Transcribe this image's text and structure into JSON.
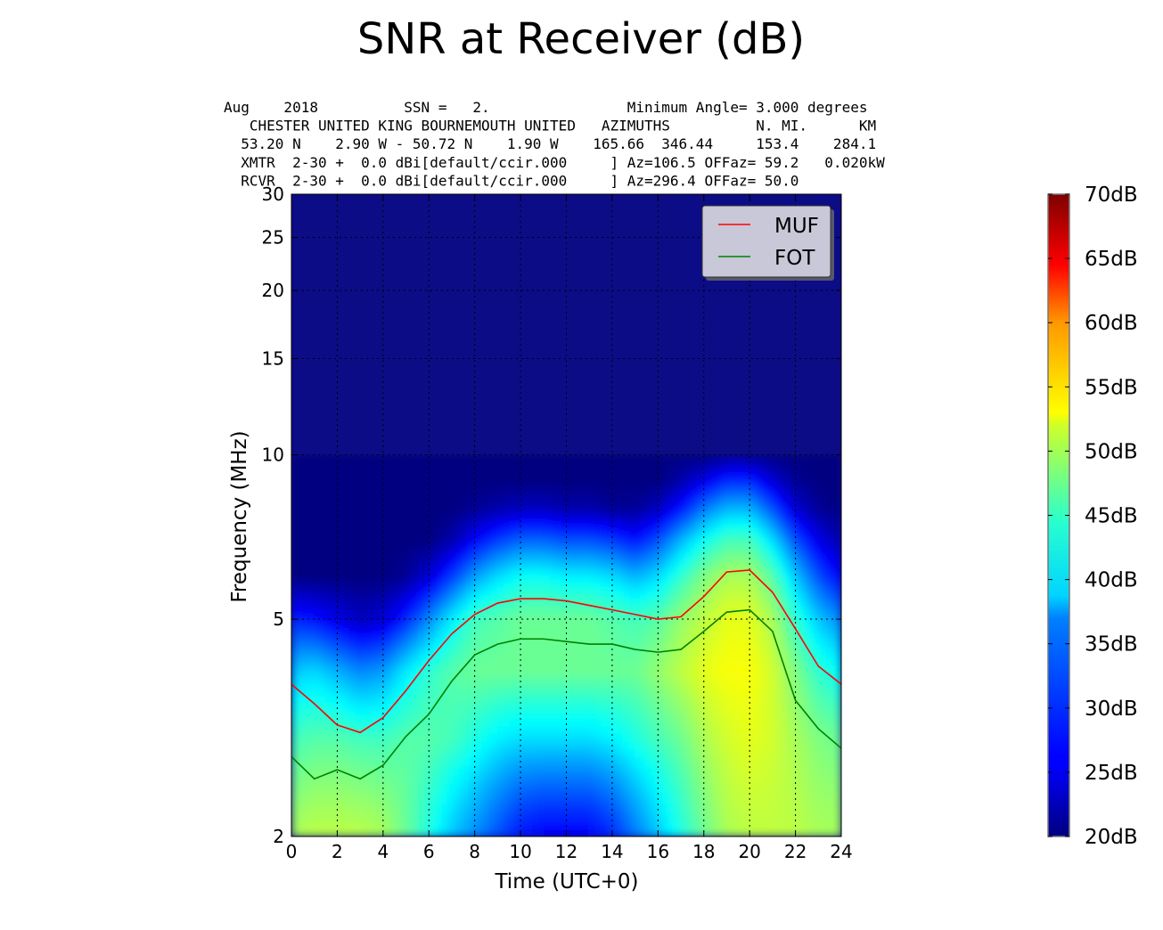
{
  "chart_data": {
    "type": "heatmap",
    "title": "SNR at Receiver (dB)",
    "header_lines": [
      "Aug    2018          SSN =   2.                Minimum Angle= 3.000 degrees",
      "   CHESTER UNITED KING BOURNEMOUTH UNITED   AZIMUTHS          N. MI.      KM",
      "  53.20 N    2.90 W - 50.72 N    1.90 W    165.66  346.44     153.4    284.1",
      "  XMTR  2-30 +  0.0 dBi[default/ccir.000     ] Az=106.5 OFFaz= 59.2   0.020kW",
      "  RCVR  2-30 +  0.0 dBi[default/ccir.000     ] Az=296.4 OFFaz= 50.0"
    ],
    "xlabel": "Time (UTC+0)",
    "ylabel": "Frequency (MHz)",
    "xlim": [
      0,
      24
    ],
    "ylim": [
      2,
      30
    ],
    "x_ticks": [
      0,
      2,
      4,
      6,
      8,
      10,
      12,
      14,
      16,
      18,
      20,
      22,
      24
    ],
    "y_ticks": [
      2,
      5,
      10,
      15,
      20,
      25,
      30
    ],
    "grid": true,
    "legend_position": "top-right",
    "colorbar": {
      "min": 20,
      "max": 70,
      "ticks": [
        "20dB",
        "25dB",
        "30dB",
        "35dB",
        "40dB",
        "45dB",
        "50dB",
        "55dB",
        "60dB",
        "65dB",
        "70dB"
      ],
      "colormap": "jet"
    },
    "series": [
      {
        "name": "MUF",
        "color": "#ff0000",
        "x": [
          0,
          1,
          2,
          3,
          4,
          5,
          6,
          7,
          8,
          9,
          10,
          11,
          12,
          13,
          14,
          15,
          16,
          17,
          18,
          19,
          20,
          21,
          22,
          23,
          24
        ],
        "values": [
          3.8,
          3.5,
          3.2,
          3.1,
          3.3,
          3.7,
          4.2,
          4.7,
          5.1,
          5.35,
          5.45,
          5.45,
          5.4,
          5.3,
          5.2,
          5.1,
          5.0,
          5.05,
          5.5,
          6.1,
          6.15,
          5.6,
          4.8,
          4.1,
          3.8
        ],
        "label": "MUF"
      },
      {
        "name": "FOT",
        "color": "#008000",
        "x": [
          0,
          1,
          2,
          3,
          4,
          5,
          6,
          7,
          8,
          9,
          10,
          11,
          12,
          13,
          14,
          15,
          16,
          17,
          18,
          19,
          20,
          21,
          22,
          23,
          24
        ],
        "values": [
          2.8,
          2.55,
          2.65,
          2.55,
          2.7,
          3.05,
          3.35,
          3.85,
          4.3,
          4.5,
          4.6,
          4.6,
          4.55,
          4.5,
          4.5,
          4.4,
          4.35,
          4.4,
          4.75,
          5.15,
          5.2,
          4.75,
          3.55,
          3.15,
          2.9
        ],
        "label": "FOT"
      }
    ],
    "snr_grid": {
      "hours": [
        0,
        1,
        2,
        3,
        4,
        5,
        6,
        7,
        8,
        9,
        10,
        11,
        12,
        13,
        14,
        15,
        16,
        17,
        18,
        19,
        20,
        21,
        22,
        23,
        24
      ],
      "freqs_mhz": [
        2,
        3,
        4,
        5,
        6,
        7,
        8,
        9,
        10
      ],
      "snr_db": [
        [
          47,
          42,
          36,
          28,
          20,
          20,
          20,
          20,
          20
        ],
        [
          48,
          43,
          37,
          27,
          20,
          20,
          20,
          20,
          20
        ],
        [
          48,
          43,
          35,
          25,
          20,
          20,
          20,
          20,
          20
        ],
        [
          48,
          42,
          33,
          23,
          20,
          20,
          20,
          20,
          20
        ],
        [
          47,
          42,
          34,
          24,
          20,
          20,
          20,
          20,
          20
        ],
        [
          44,
          43,
          38,
          28,
          21,
          20,
          20,
          20,
          20
        ],
        [
          40,
          43,
          41,
          33,
          24,
          20,
          20,
          20,
          20
        ],
        [
          36,
          42,
          43,
          38,
          29,
          22,
          20,
          20,
          20
        ],
        [
          33,
          40,
          44,
          42,
          34,
          26,
          21,
          20,
          20
        ],
        [
          30,
          38,
          44,
          43,
          37,
          29,
          22,
          20,
          20
        ],
        [
          27,
          37,
          44,
          44,
          39,
          31,
          23,
          20,
          20
        ],
        [
          26,
          37,
          44,
          44,
          39,
          31,
          23,
          20,
          20
        ],
        [
          26,
          37,
          44,
          44,
          38,
          30,
          22,
          20,
          20
        ],
        [
          26,
          37,
          44,
          44,
          38,
          30,
          22,
          20,
          20
        ],
        [
          28,
          38,
          44,
          43,
          37,
          29,
          21,
          20,
          20
        ],
        [
          32,
          40,
          44,
          42,
          35,
          27,
          21,
          20,
          20
        ],
        [
          36,
          42,
          46,
          43,
          37,
          30,
          23,
          20,
          20
        ],
        [
          40,
          44,
          48,
          46,
          41,
          35,
          27,
          22,
          20
        ],
        [
          44,
          47,
          50,
          48,
          45,
          39,
          32,
          25,
          20
        ],
        [
          47,
          49,
          51,
          50,
          47,
          42,
          35,
          28,
          21
        ],
        [
          48,
          50,
          51,
          50,
          47,
          42,
          35,
          28,
          21
        ],
        [
          48,
          49,
          49,
          47,
          43,
          37,
          30,
          24,
          20
        ],
        [
          48,
          47,
          45,
          41,
          36,
          30,
          24,
          21,
          20
        ],
        [
          47,
          45,
          41,
          36,
          30,
          25,
          21,
          20,
          20
        ],
        [
          47,
          44,
          39,
          33,
          26,
          22,
          20,
          20,
          20
        ]
      ]
    }
  }
}
